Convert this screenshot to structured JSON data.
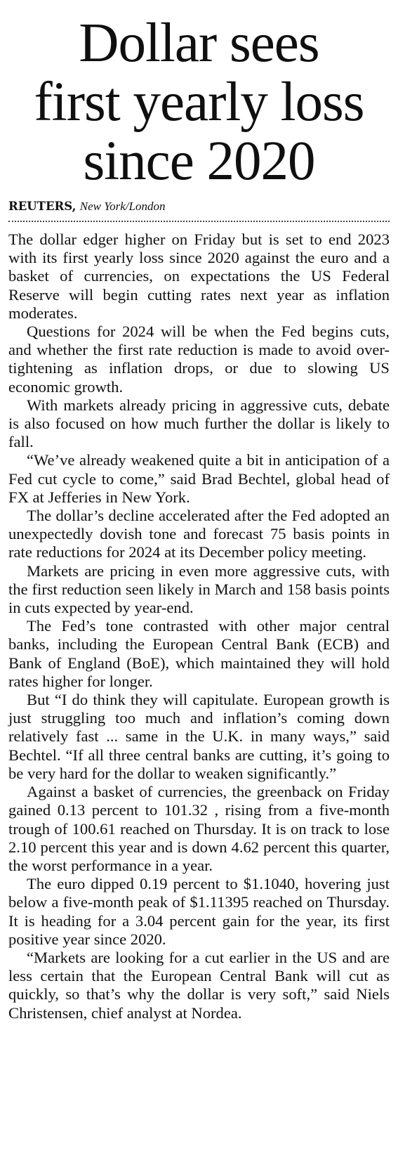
{
  "article": {
    "headline_lines": [
      "Dollar sees",
      "first yearly loss",
      "since 2020"
    ],
    "byline": {
      "agency": "REUTERS,",
      "location": "New York/London"
    },
    "paragraphs": [
      "The dollar edger higher on Friday but is set to end 2023 with its first yearly loss since 2020 against the euro and a basket of currencies, on expectations the US Federal Reserve will begin cutting rates next year as inflation moderates.",
      "Questions for 2024 will be when the Fed begins cuts, and whether the first rate reduction is made to avoid over-tightening as inflation drops, or due to slowing US economic growth.",
      "With markets already pricing in aggressive cuts, debate is also focused on how much further the dollar is likely to fall.",
      "“We’ve already weakened quite a bit in anticipation of a Fed cut cycle to come,” said Brad Bechtel, global head of FX at Jefferies in New York.",
      "The dollar’s decline accelerated after the Fed adopted an unexpectedly dovish tone and forecast 75 basis points in rate reductions for 2024 at its December policy meeting.",
      "Markets are pricing in even more aggressive cuts, with the first reduction seen likely in March and 158 basis points in cuts expected by year-end.",
      "The Fed’s tone contrasted with other major central banks, including the European Central Bank (ECB) and Bank of England (BoE), which maintained they will hold rates higher for longer.",
      "But “I do think they will capitulate. European growth is just struggling too much and inflation’s coming down relatively fast ... same in the U.K. in many ways,” said Bechtel. “If all three central banks are cutting, it’s going to be very hard for the dollar to weaken significantly.”",
      "Against a basket of currencies, the greenback on Friday gained 0.13 percent to 101.32 , rising from a five-month trough of 100.61 reached on Thursday. It is on track to lose 2.10 percent this year and is down 4.62 percent this quarter, the worst performance in a year.",
      "The euro dipped 0.19 percent to $1.1040, hovering just below a five-month peak of $1.11395 reached on Thursday. It is heading for a 3.04 percent gain for the year, its first positive year since 2020.",
      "“Markets are looking for a cut earlier in the US and are less certain that the European Central Bank will cut as quickly, so that’s why the dollar is very soft,” said Niels Christensen, chief analyst at Nordea."
    ]
  }
}
